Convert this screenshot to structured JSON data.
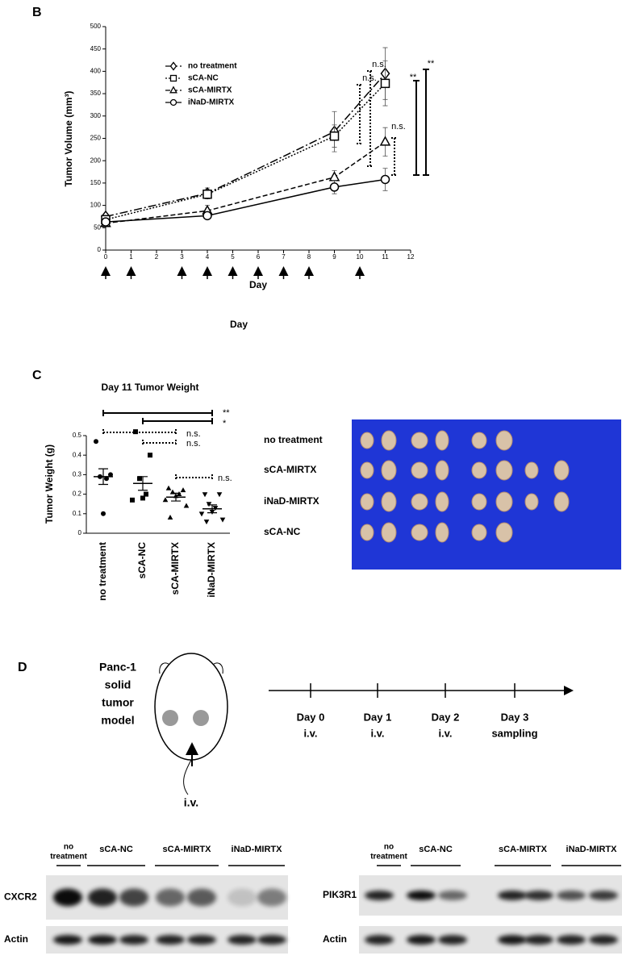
{
  "panel_labels": {
    "b": "B",
    "c": "C",
    "d": "D"
  },
  "chart_data": [
    {
      "type": "line",
      "xlabel": "Day",
      "ylabel": "Tumor Volume (mm³)",
      "x": [
        0,
        4,
        9,
        11
      ],
      "xlim": [
        0,
        12
      ],
      "xticks": [
        0,
        1,
        2,
        3,
        4,
        5,
        6,
        7,
        8,
        9,
        10,
        11,
        12
      ],
      "ylim": [
        0,
        500
      ],
      "yticks": [
        0,
        50,
        100,
        150,
        200,
        250,
        300,
        350,
        400,
        450,
        500
      ],
      "legend": "upper-left",
      "series": [
        {
          "name": "no treatment",
          "color": "#000000",
          "marker": "diamond",
          "dash": "10,3,2,3",
          "values": [
            75,
            127,
            265,
            395
          ],
          "errors": [
            5,
            12,
            45,
            58
          ]
        },
        {
          "name": "sCA-NC",
          "color": "#000000",
          "marker": "square",
          "dash": "2,2",
          "values": [
            68,
            125,
            255,
            373
          ],
          "errors": [
            5,
            10,
            25,
            50
          ]
        },
        {
          "name": "sCA-MIRTX",
          "color": "#000000",
          "marker": "triangle",
          "dash": "6,3",
          "values": [
            60,
            88,
            163,
            242
          ],
          "errors": [
            5,
            12,
            15,
            32
          ]
        },
        {
          "name": "iNaD-MIRTX",
          "color": "#000000",
          "marker": "circle",
          "dash": "none",
          "values": [
            63,
            77,
            141,
            158
          ],
          "errors": [
            5,
            8,
            15,
            25
          ]
        }
      ],
      "injection_days": [
        0,
        1,
        3,
        4,
        5,
        6,
        7,
        8,
        10
      ],
      "annotations": [
        "n.s.",
        "n.s.",
        "n.s.",
        "**",
        "**"
      ],
      "footer_label": "Day"
    },
    {
      "type": "dot",
      "title": "Day 11 Tumor Weight",
      "ylabel": "Tumor Weight (g)",
      "categories": [
        "no treatment",
        "sCA-NC",
        "sCA-MIRTX",
        "iNaD-MIRTX"
      ],
      "markers": [
        "circle",
        "square",
        "triangle",
        "inverted-triangle"
      ],
      "color": "#000000",
      "ylim": [
        0,
        0.5
      ],
      "yticks": [
        0,
        0.1,
        0.2,
        0.3,
        0.4,
        0.5
      ],
      "points": [
        [
          0.47,
          0.3,
          0.29,
          0.28,
          0.1
        ],
        [
          0.52,
          0.4,
          0.28,
          0.2,
          0.18,
          0.17
        ],
        [
          0.23,
          0.22,
          0.21,
          0.2,
          0.19,
          0.17,
          0.14,
          0.08
        ],
        [
          0.2,
          0.2,
          0.15,
          0.13,
          0.11,
          0.1,
          0.07,
          0.06
        ]
      ],
      "means": [
        0.29,
        0.255,
        0.185,
        0.125
      ],
      "sem": [
        0.04,
        0.035,
        0.02,
        0.02
      ],
      "annotations": [
        "**",
        "*",
        "n.s.",
        "n.s.",
        "n.s."
      ]
    }
  ],
  "photo": {
    "rows": [
      "no treatment",
      "sCA-MIRTX",
      "iNaD-MIRTX",
      "sCA-NC"
    ]
  },
  "diagram": {
    "model_lines": [
      "Panc-1",
      "solid",
      "tumor",
      "model"
    ],
    "route": "i.v.",
    "timeline": [
      {
        "day": "Day 0",
        "action": "i.v."
      },
      {
        "day": "Day 1",
        "action": "i.v."
      },
      {
        "day": "Day 2",
        "action": "i.v."
      },
      {
        "day": "Day 3",
        "action": "sampling"
      }
    ]
  },
  "blots": {
    "left": {
      "groups": [
        [
          "no",
          "treatment"
        ],
        [
          "sCA-NC"
        ],
        [
          "sCA-MIRTX"
        ],
        [
          "iNaD-MIRTX"
        ]
      ],
      "rows": [
        "CXCR2",
        "Actin"
      ]
    },
    "right": {
      "groups": [
        [
          "no",
          "treatment"
        ],
        [
          "sCA-NC"
        ],
        [
          "sCA-MIRTX"
        ],
        [
          "iNaD-MIRTX"
        ]
      ],
      "rows": [
        "PIK3R1",
        "Actin"
      ]
    }
  }
}
